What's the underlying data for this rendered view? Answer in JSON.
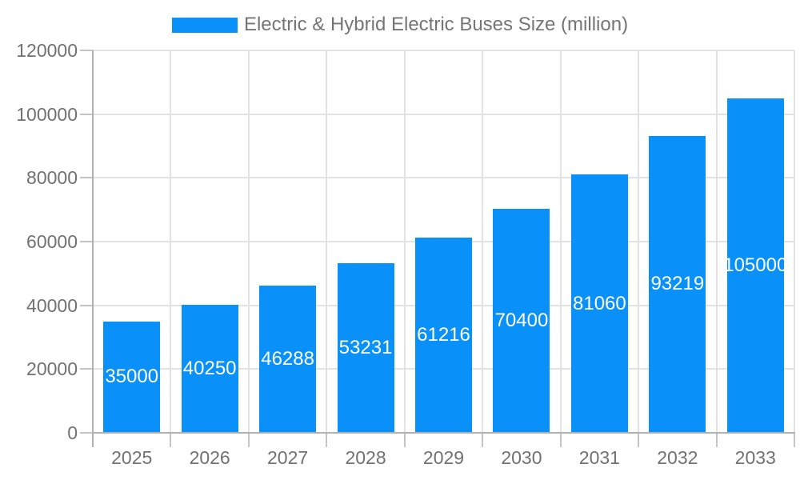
{
  "chart_data": {
    "type": "bar",
    "title": "Electric & Hybrid Electric Buses Size (million)",
    "legend": {
      "label": "Electric & Hybrid Electric Buses Size (million)",
      "position": "top-center"
    },
    "categories": [
      "2025",
      "2026",
      "2027",
      "2028",
      "2029",
      "2030",
      "2031",
      "2032",
      "2033"
    ],
    "values": [
      35000,
      40250,
      46288,
      53231,
      61216,
      70400,
      81060,
      93219,
      105000
    ],
    "xlabel": "",
    "ylabel": "",
    "ylim": [
      0,
      120000
    ],
    "yticks": [
      0,
      20000,
      40000,
      60000,
      80000,
      100000,
      120000
    ],
    "grid": true,
    "bar_labels_inside": true,
    "colors": {
      "bar": "#0A90F9",
      "bar_label": "#FFFFFF",
      "axis_text": "#717171",
      "legend_text": "#757575",
      "gridline": "#E2E2E2",
      "tick": "#C4C4C4",
      "axis_line": "#B0B0B0",
      "background": "#FFFFFF"
    }
  }
}
